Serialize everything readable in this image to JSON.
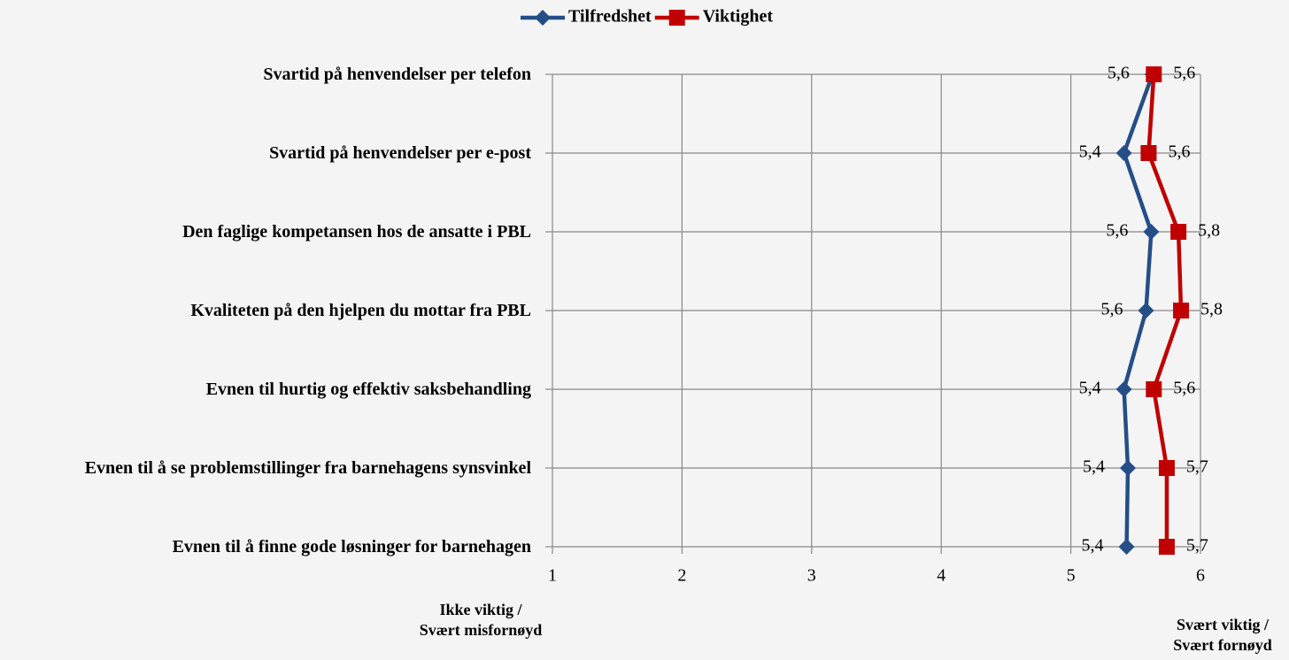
{
  "chart_data": {
    "type": "line",
    "categories": [
      "Svartid på henvendelser per telefon",
      "Svartid på henvendelser per e-post",
      "Den faglige kompetansen hos de ansatte i PBL",
      "Kvaliteten på den hjelpen du mottar fra PBL",
      "Evnen til hurtig og effektiv saksbehandling",
      "Evnen til å se problemstillinger fra barnehagens synsvinkel",
      "Evnen til å finne gode løsninger for barnehagen"
    ],
    "series": [
      {
        "name": "Tilfredshet",
        "color": "#254e87",
        "marker": "diamond",
        "values": [
          5.63,
          5.41,
          5.62,
          5.58,
          5.41,
          5.44,
          5.43
        ],
        "value_labels": [
          "5,6",
          "5,4",
          "5,6",
          "5,6",
          "5,4",
          "5,4",
          "5,4"
        ]
      },
      {
        "name": "Viktighet",
        "color": "#c00000",
        "marker": "square",
        "values": [
          5.64,
          5.6,
          5.83,
          5.85,
          5.64,
          5.74,
          5.74
        ],
        "value_labels": [
          "5,6",
          "5,6",
          "5,8",
          "5,8",
          "5,6",
          "5,7",
          "5,7"
        ]
      }
    ],
    "xlim": [
      1,
      6
    ],
    "xticks": [
      1,
      2,
      3,
      4,
      5,
      6
    ],
    "grid": true,
    "legend": "top",
    "xlabel_left": [
      "Ikke viktig /",
      "Svært misfornøyd"
    ],
    "xlabel_right": [
      "Svært viktig /",
      "Svært fornøyd"
    ]
  }
}
